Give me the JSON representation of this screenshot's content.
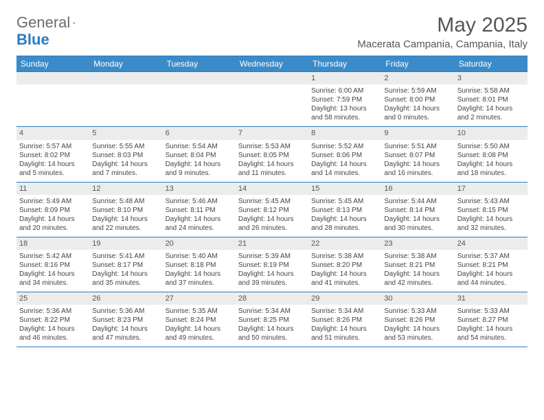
{
  "brand": {
    "general": "General",
    "blue": "Blue"
  },
  "title": "May 2025",
  "location": "Macerata Campania, Campania, Italy",
  "colors": {
    "header_bg": "#3b8bc9",
    "rule": "#2a7ac0",
    "daynum_bg": "#ececec",
    "text": "#444444",
    "background": "#ffffff"
  },
  "day_names": [
    "Sunday",
    "Monday",
    "Tuesday",
    "Wednesday",
    "Thursday",
    "Friday",
    "Saturday"
  ],
  "weeks": [
    [
      null,
      null,
      null,
      null,
      {
        "n": "1",
        "sr": "Sunrise: 6:00 AM",
        "ss": "Sunset: 7:59 PM",
        "dl": "Daylight: 13 hours and 58 minutes."
      },
      {
        "n": "2",
        "sr": "Sunrise: 5:59 AM",
        "ss": "Sunset: 8:00 PM",
        "dl": "Daylight: 14 hours and 0 minutes."
      },
      {
        "n": "3",
        "sr": "Sunrise: 5:58 AM",
        "ss": "Sunset: 8:01 PM",
        "dl": "Daylight: 14 hours and 2 minutes."
      }
    ],
    [
      {
        "n": "4",
        "sr": "Sunrise: 5:57 AM",
        "ss": "Sunset: 8:02 PM",
        "dl": "Daylight: 14 hours and 5 minutes."
      },
      {
        "n": "5",
        "sr": "Sunrise: 5:55 AM",
        "ss": "Sunset: 8:03 PM",
        "dl": "Daylight: 14 hours and 7 minutes."
      },
      {
        "n": "6",
        "sr": "Sunrise: 5:54 AM",
        "ss": "Sunset: 8:04 PM",
        "dl": "Daylight: 14 hours and 9 minutes."
      },
      {
        "n": "7",
        "sr": "Sunrise: 5:53 AM",
        "ss": "Sunset: 8:05 PM",
        "dl": "Daylight: 14 hours and 11 minutes."
      },
      {
        "n": "8",
        "sr": "Sunrise: 5:52 AM",
        "ss": "Sunset: 8:06 PM",
        "dl": "Daylight: 14 hours and 14 minutes."
      },
      {
        "n": "9",
        "sr": "Sunrise: 5:51 AM",
        "ss": "Sunset: 8:07 PM",
        "dl": "Daylight: 14 hours and 16 minutes."
      },
      {
        "n": "10",
        "sr": "Sunrise: 5:50 AM",
        "ss": "Sunset: 8:08 PM",
        "dl": "Daylight: 14 hours and 18 minutes."
      }
    ],
    [
      {
        "n": "11",
        "sr": "Sunrise: 5:49 AM",
        "ss": "Sunset: 8:09 PM",
        "dl": "Daylight: 14 hours and 20 minutes."
      },
      {
        "n": "12",
        "sr": "Sunrise: 5:48 AM",
        "ss": "Sunset: 8:10 PM",
        "dl": "Daylight: 14 hours and 22 minutes."
      },
      {
        "n": "13",
        "sr": "Sunrise: 5:46 AM",
        "ss": "Sunset: 8:11 PM",
        "dl": "Daylight: 14 hours and 24 minutes."
      },
      {
        "n": "14",
        "sr": "Sunrise: 5:45 AM",
        "ss": "Sunset: 8:12 PM",
        "dl": "Daylight: 14 hours and 26 minutes."
      },
      {
        "n": "15",
        "sr": "Sunrise: 5:45 AM",
        "ss": "Sunset: 8:13 PM",
        "dl": "Daylight: 14 hours and 28 minutes."
      },
      {
        "n": "16",
        "sr": "Sunrise: 5:44 AM",
        "ss": "Sunset: 8:14 PM",
        "dl": "Daylight: 14 hours and 30 minutes."
      },
      {
        "n": "17",
        "sr": "Sunrise: 5:43 AM",
        "ss": "Sunset: 8:15 PM",
        "dl": "Daylight: 14 hours and 32 minutes."
      }
    ],
    [
      {
        "n": "18",
        "sr": "Sunrise: 5:42 AM",
        "ss": "Sunset: 8:16 PM",
        "dl": "Daylight: 14 hours and 34 minutes."
      },
      {
        "n": "19",
        "sr": "Sunrise: 5:41 AM",
        "ss": "Sunset: 8:17 PM",
        "dl": "Daylight: 14 hours and 35 minutes."
      },
      {
        "n": "20",
        "sr": "Sunrise: 5:40 AM",
        "ss": "Sunset: 8:18 PM",
        "dl": "Daylight: 14 hours and 37 minutes."
      },
      {
        "n": "21",
        "sr": "Sunrise: 5:39 AM",
        "ss": "Sunset: 8:19 PM",
        "dl": "Daylight: 14 hours and 39 minutes."
      },
      {
        "n": "22",
        "sr": "Sunrise: 5:38 AM",
        "ss": "Sunset: 8:20 PM",
        "dl": "Daylight: 14 hours and 41 minutes."
      },
      {
        "n": "23",
        "sr": "Sunrise: 5:38 AM",
        "ss": "Sunset: 8:21 PM",
        "dl": "Daylight: 14 hours and 42 minutes."
      },
      {
        "n": "24",
        "sr": "Sunrise: 5:37 AM",
        "ss": "Sunset: 8:21 PM",
        "dl": "Daylight: 14 hours and 44 minutes."
      }
    ],
    [
      {
        "n": "25",
        "sr": "Sunrise: 5:36 AM",
        "ss": "Sunset: 8:22 PM",
        "dl": "Daylight: 14 hours and 46 minutes."
      },
      {
        "n": "26",
        "sr": "Sunrise: 5:36 AM",
        "ss": "Sunset: 8:23 PM",
        "dl": "Daylight: 14 hours and 47 minutes."
      },
      {
        "n": "27",
        "sr": "Sunrise: 5:35 AM",
        "ss": "Sunset: 8:24 PM",
        "dl": "Daylight: 14 hours and 49 minutes."
      },
      {
        "n": "28",
        "sr": "Sunrise: 5:34 AM",
        "ss": "Sunset: 8:25 PM",
        "dl": "Daylight: 14 hours and 50 minutes."
      },
      {
        "n": "29",
        "sr": "Sunrise: 5:34 AM",
        "ss": "Sunset: 8:26 PM",
        "dl": "Daylight: 14 hours and 51 minutes."
      },
      {
        "n": "30",
        "sr": "Sunrise: 5:33 AM",
        "ss": "Sunset: 8:26 PM",
        "dl": "Daylight: 14 hours and 53 minutes."
      },
      {
        "n": "31",
        "sr": "Sunrise: 5:33 AM",
        "ss": "Sunset: 8:27 PM",
        "dl": "Daylight: 14 hours and 54 minutes."
      }
    ]
  ]
}
